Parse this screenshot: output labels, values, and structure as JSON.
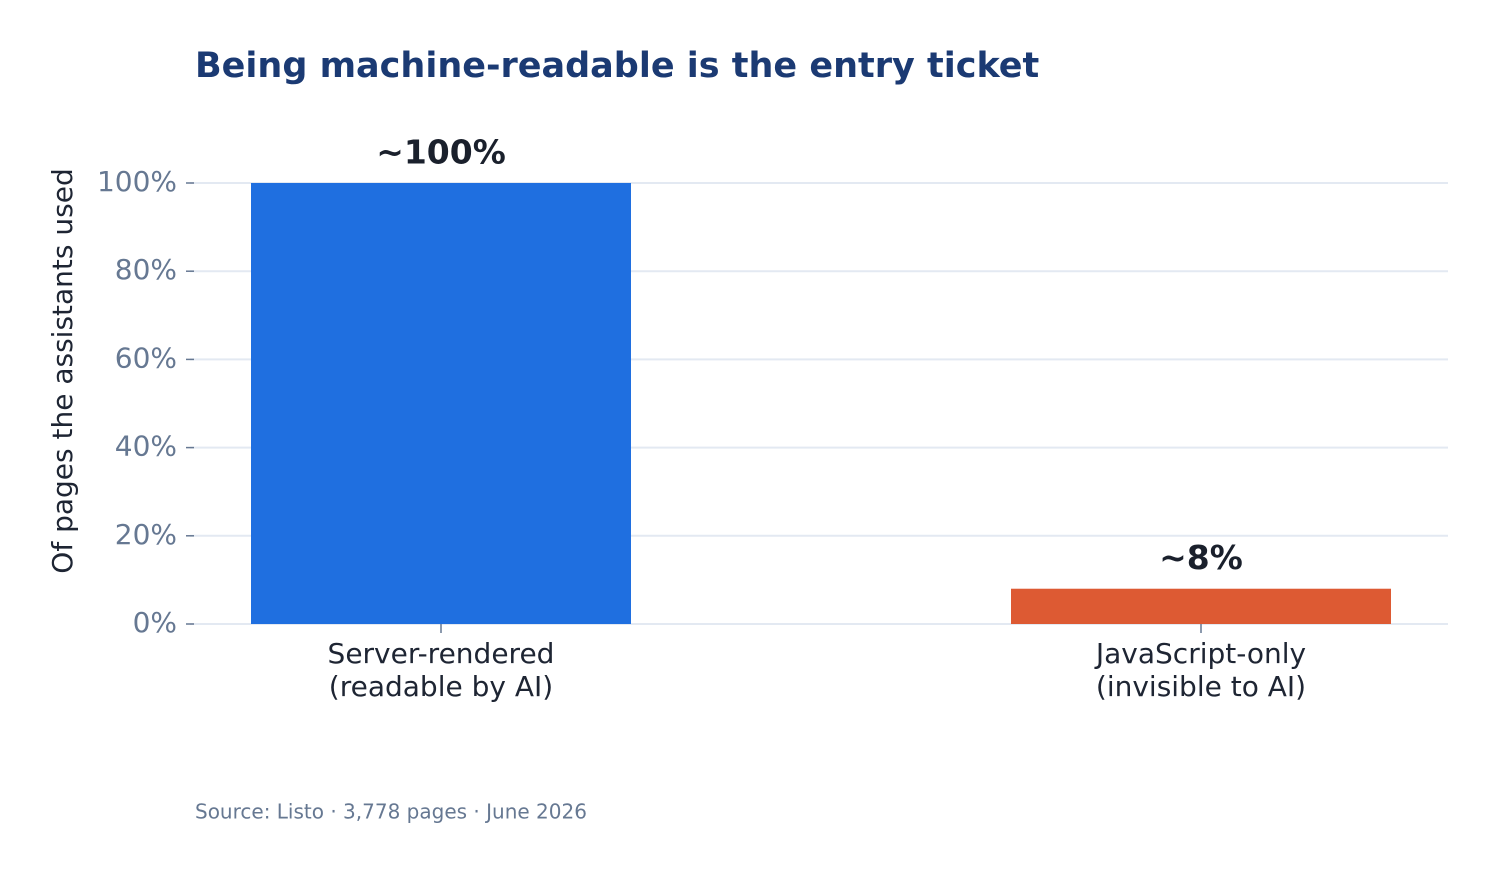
{
  "chart_data": {
    "type": "bar",
    "title": "Being machine-readable is the entry ticket",
    "y_label": "Of pages the assistants used",
    "categories": [
      "Server-rendered\n(readable by AI)",
      "JavaScript-only\n(invisible to AI)"
    ],
    "values": [
      100,
      8
    ],
    "value_labels": [
      "~100%",
      "~8%"
    ],
    "colors": [
      "#1f6fe0",
      "#dd5a33"
    ],
    "ylim": [
      0,
      100
    ],
    "yticks": [
      {
        "value": 0,
        "label": "0%"
      },
      {
        "value": 20,
        "label": "20%"
      },
      {
        "value": 40,
        "label": "40%"
      },
      {
        "value": 60,
        "label": "60%"
      },
      {
        "value": 80,
        "label": "80%"
      },
      {
        "value": 100,
        "label": "100%"
      }
    ],
    "grid": true,
    "source": "Source: Listo · 3,778 pages · June 2026"
  }
}
